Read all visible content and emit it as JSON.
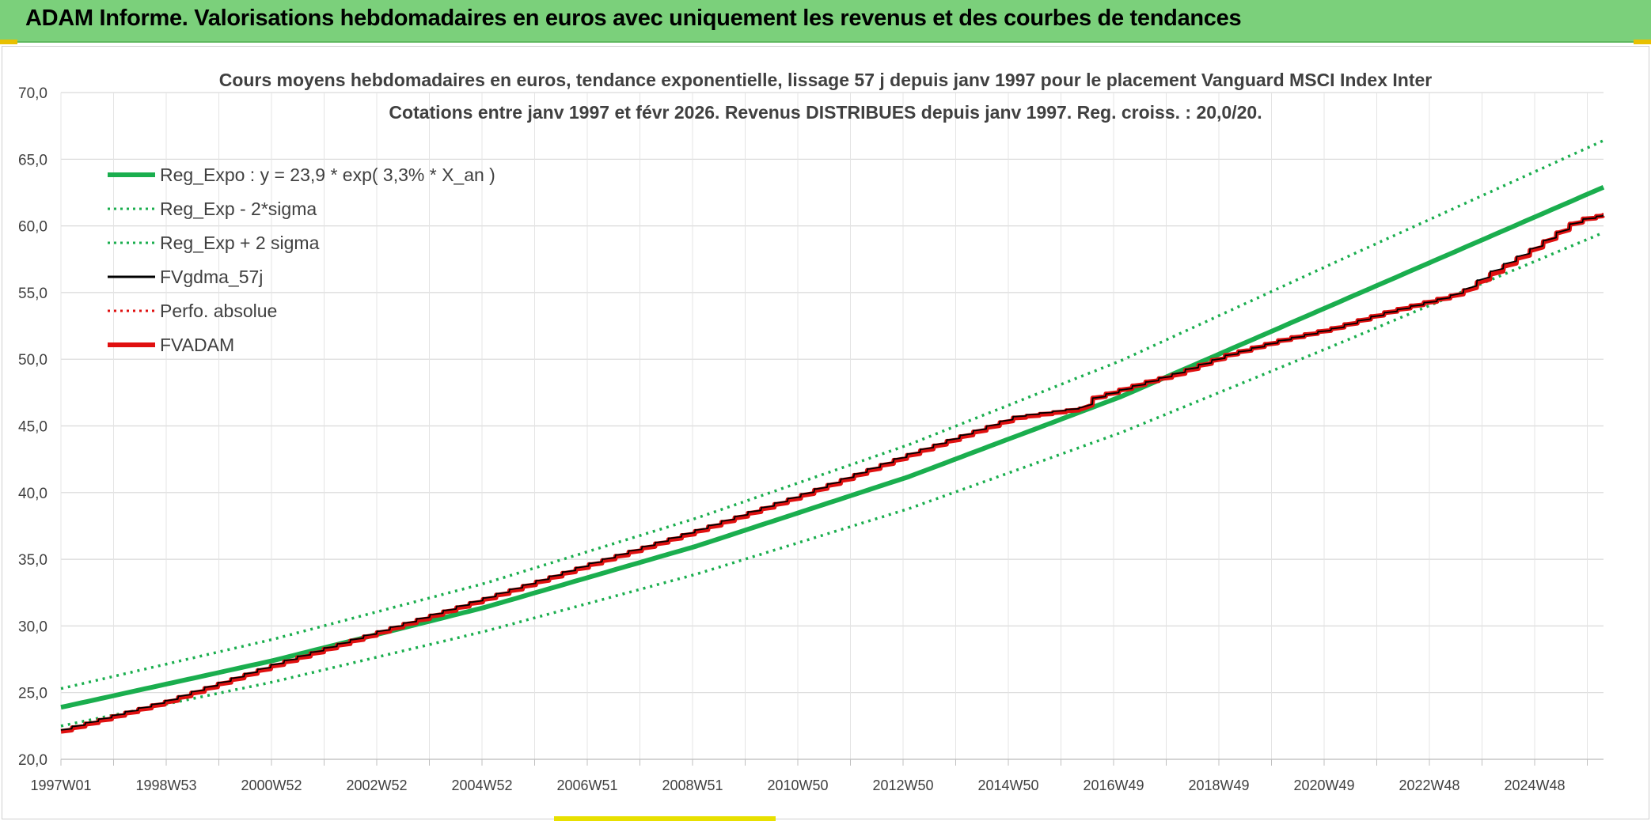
{
  "banner": {
    "title": "ADAM Informe. Valorisations hebdomadaires en euros avec uniquement les revenus et des courbes de tendances"
  },
  "colors": {
    "banner_bg": "#7bd07b",
    "trend_green": "#1aae4e",
    "portfolio_red": "#e01010",
    "smoothed_black": "#000000"
  },
  "chart_data": {
    "type": "line",
    "title_line1": "Cours moyens hebdomadaires en euros, tendance exponentielle, lissage 57 j depuis janv 1997 pour le placement Vanguard MSCI Index Inter",
    "title_line2": "Cotations entre janv 1997 et févr 2026. Revenus DISTRIBUES depuis janv 1997. Reg. croiss. : 20,0/20.",
    "ylim": [
      20,
      70
    ],
    "y_ticks": [
      "20,0",
      "25,0",
      "30,0",
      "35,0",
      "40,0",
      "45,0",
      "50,0",
      "55,0",
      "60,0",
      "65,0",
      "70,0"
    ],
    "x_ticks": [
      "1997W01",
      "1998W53",
      "2000W52",
      "2002W52",
      "2004W52",
      "2006W51",
      "2008W51",
      "2010W50",
      "2012W50",
      "2014W50",
      "2016W49",
      "2018W49",
      "2020W49",
      "2022W48",
      "2024W48"
    ],
    "grid": true,
    "legend_position": "top-left",
    "legend": [
      {
        "label": "Reg_Expo : y = 23,9 * exp( 3,3% *  X_an )",
        "color": "#1aae4e",
        "style": "solid-thick"
      },
      {
        "label": "Reg_Exp - 2*sigma",
        "color": "#1aae4e",
        "style": "dotted"
      },
      {
        "label": "Reg_Exp + 2 sigma",
        "color": "#1aae4e",
        "style": "dotted"
      },
      {
        "label": "FVgdma_57j",
        "color": "#000000",
        "style": "solid"
      },
      {
        "label": "Perfo. absolue",
        "color": "#e01010",
        "style": "dotted"
      },
      {
        "label": "FVADAM",
        "color": "#e01010",
        "style": "solid-thick"
      }
    ],
    "series": [
      {
        "name": "Reg_Expo : y = 23,9 * exp( 3,3% *  X_an )",
        "x": [
          1997,
          2001,
          2005,
          2009,
          2013,
          2017,
          2021,
          2026.1
        ],
        "values": [
          23.9,
          27.4,
          31.4,
          36.0,
          41.2,
          47.2,
          54.1,
          62.9
        ]
      },
      {
        "name": "Reg_Exp - 2*sigma",
        "x": [
          1997,
          2001,
          2005,
          2009,
          2013,
          2017,
          2021,
          2026.1
        ],
        "values": [
          22.5,
          25.8,
          29.6,
          33.9,
          38.8,
          44.5,
          51.0,
          59.5
        ]
      },
      {
        "name": "Reg_Exp + 2 sigma",
        "x": [
          1997,
          2001,
          2005,
          2009,
          2013,
          2017,
          2021,
          2026.1
        ],
        "values": [
          25.3,
          29.0,
          33.2,
          38.1,
          43.6,
          49.9,
          57.2,
          66.4
        ]
      },
      {
        "name": "FVADAM",
        "x": [
          1997,
          1999,
          2001,
          2003,
          2005,
          2007,
          2009,
          2011,
          2013,
          2015,
          2016.3,
          2016.5,
          2017.5,
          2018,
          2019,
          2020,
          2021,
          2022,
          2023,
          2023.4,
          2024,
          2024.8,
          2025.6,
          2026.1
        ],
        "values": [
          22.1,
          24.3,
          27.0,
          29.5,
          32.0,
          34.6,
          37.1,
          39.8,
          42.8,
          45.6,
          46.3,
          47.1,
          48.3,
          48.8,
          50.3,
          51.4,
          52.3,
          53.5,
          54.5,
          54.9,
          56.4,
          58.3,
          60.4,
          60.8
        ]
      },
      {
        "name": "FVgdma_57j",
        "x": [
          1997,
          1999,
          2001,
          2003,
          2005,
          2007,
          2009,
          2011,
          2013,
          2015,
          2016.3,
          2016.5,
          2017.5,
          2018,
          2019,
          2020,
          2021,
          2022,
          2023,
          2023.4,
          2024,
          2024.8,
          2025.6,
          2026.1
        ],
        "values": [
          22.2,
          24.4,
          27.1,
          29.6,
          32.1,
          34.7,
          37.2,
          39.9,
          42.9,
          45.7,
          46.4,
          47.1,
          48.3,
          48.9,
          50.3,
          51.4,
          52.3,
          53.5,
          54.5,
          55.0,
          56.6,
          58.4,
          60.4,
          60.8
        ]
      }
    ]
  }
}
